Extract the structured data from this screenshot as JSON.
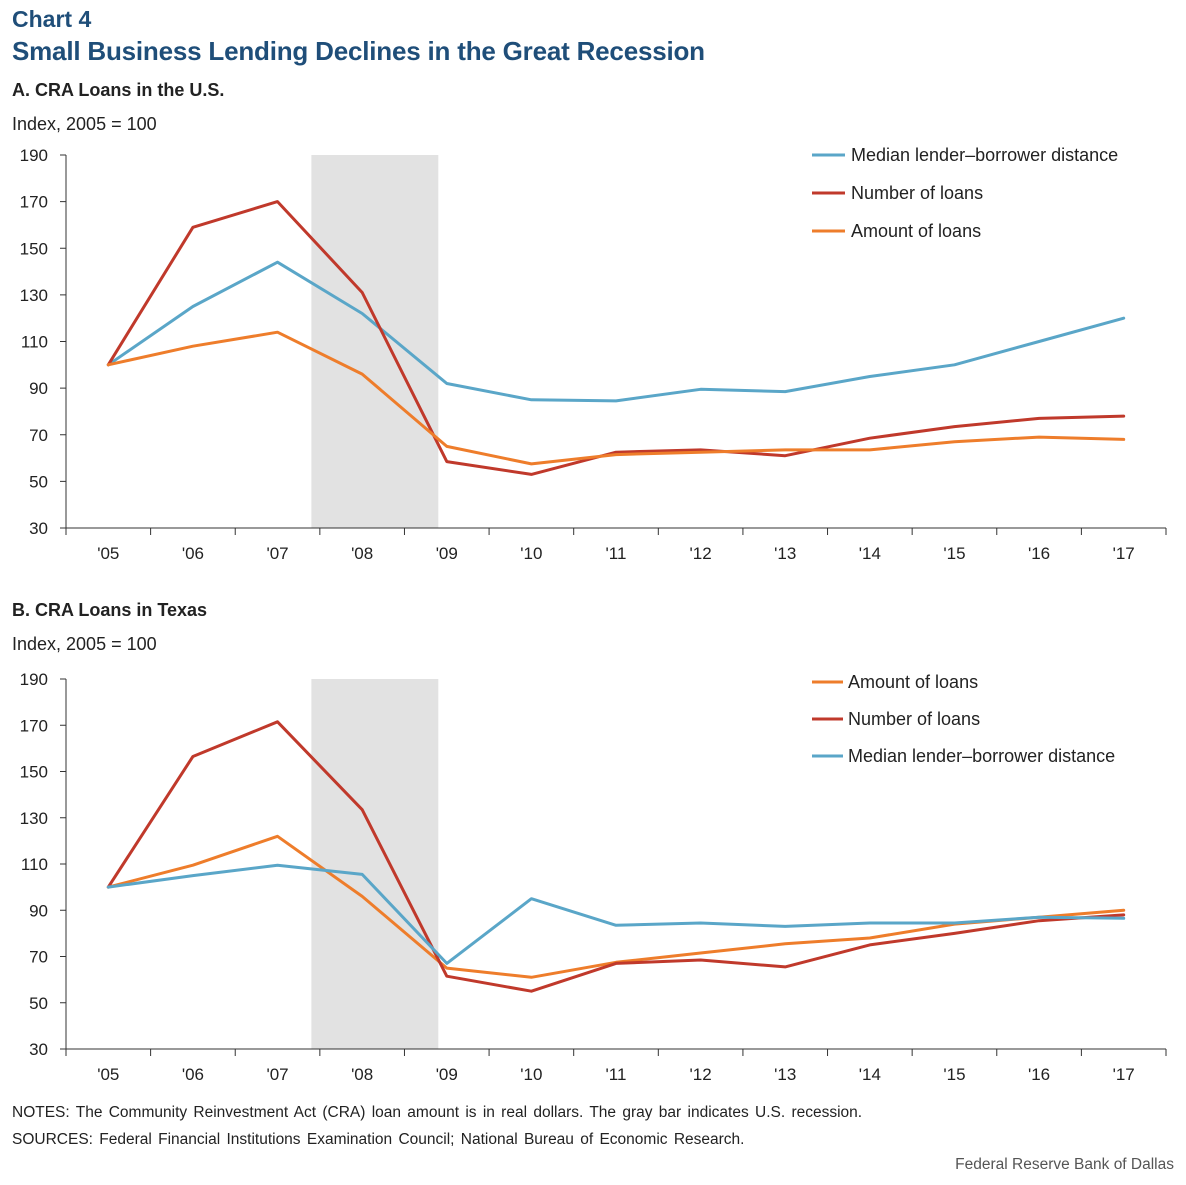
{
  "header": {
    "label": "Chart 4",
    "title": "Small Business Lending Declines in the Great Recession"
  },
  "colors": {
    "distance": "#5aa6c8",
    "number": "#c0392b",
    "amount": "#ee7d2b",
    "recession": "#e2e2e2"
  },
  "chart_data": [
    {
      "type": "line",
      "title": "A. CRA Loans in the U.S.",
      "ylabel": "Index, 2005 = 100",
      "categories": [
        "'05",
        "'06",
        "'07",
        "'08",
        "'09",
        "'10",
        "'11",
        "'12",
        "'13",
        "'14",
        "'15",
        "'16",
        "'17"
      ],
      "ylim": [
        30,
        190
      ],
      "yticks": [
        30,
        50,
        70,
        90,
        110,
        130,
        150,
        170,
        190
      ],
      "recession": [
        2.4,
        3.9
      ],
      "legend_position": "top-right",
      "series": [
        {
          "name": "Median lender–borrower distance",
          "color_key": "distance",
          "values": [
            100,
            125,
            144,
            122,
            92,
            85,
            84.5,
            89.5,
            88.5,
            95,
            100,
            110,
            120
          ]
        },
        {
          "name": "Number of loans",
          "color_key": "number",
          "values": [
            100,
            159,
            170,
            131,
            58.5,
            53,
            62.5,
            63.5,
            61,
            68.5,
            73.5,
            77,
            78
          ]
        },
        {
          "name": "Amount of loans",
          "color_key": "amount",
          "values": [
            100,
            108,
            114,
            96,
            65,
            57.5,
            61.5,
            62.5,
            63.5,
            63.5,
            67,
            69,
            68
          ]
        }
      ]
    },
    {
      "type": "line",
      "title": "B. CRA Loans in Texas",
      "ylabel": "Index, 2005 = 100",
      "categories": [
        "'05",
        "'06",
        "'07",
        "'08",
        "'09",
        "'10",
        "'11",
        "'12",
        "'13",
        "'14",
        "'15",
        "'16",
        "'17"
      ],
      "ylim": [
        30,
        190
      ],
      "yticks": [
        30,
        50,
        70,
        90,
        110,
        130,
        150,
        170,
        190
      ],
      "recession": [
        2.4,
        3.9
      ],
      "legend_position": "top-right",
      "series": [
        {
          "name": "Amount of loans",
          "color_key": "amount",
          "values": [
            100,
            109.5,
            122,
            96,
            65,
            61,
            67.5,
            71.5,
            75.5,
            78,
            84,
            87,
            90
          ]
        },
        {
          "name": "Number of loans",
          "color_key": "number",
          "values": [
            100,
            156.5,
            171.5,
            133.5,
            61.5,
            55,
            67,
            68.5,
            65.5,
            75,
            80,
            85.5,
            88
          ]
        },
        {
          "name": "Median lender–borrower distance",
          "color_key": "distance",
          "values": [
            100,
            105,
            109.5,
            105.5,
            67,
            95,
            83.5,
            84.5,
            83,
            84.5,
            84.5,
            87,
            86.5
          ]
        }
      ]
    }
  ],
  "footer": {
    "notes": "NOTES: The Community Reinvestment Act (CRA) loan amount is in real dollars. The gray bar indicates U.S. recession.",
    "sources": "SOURCES: Federal Financial Institutions Examination Council; National Bureau of Economic Research.",
    "credit": "Federal Reserve Bank of Dallas"
  }
}
